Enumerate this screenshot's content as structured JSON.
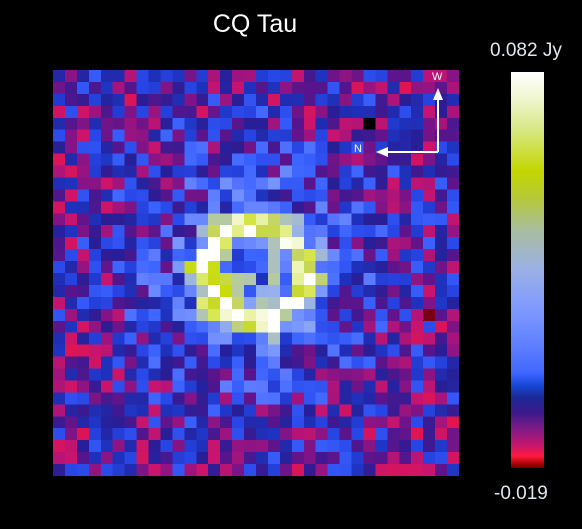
{
  "title": "CQ Tau",
  "compass": {
    "north_label": "N",
    "west_label": "W"
  },
  "colorbar": {
    "max_label": "0.082 Jy",
    "min_label": "-0.019",
    "max_value": 0.082,
    "min_value": -0.019
  },
  "image": {
    "grid": [
      34,
      34
    ],
    "ring": "bright yellow-green ring at center of noisy blue/red map"
  }
}
